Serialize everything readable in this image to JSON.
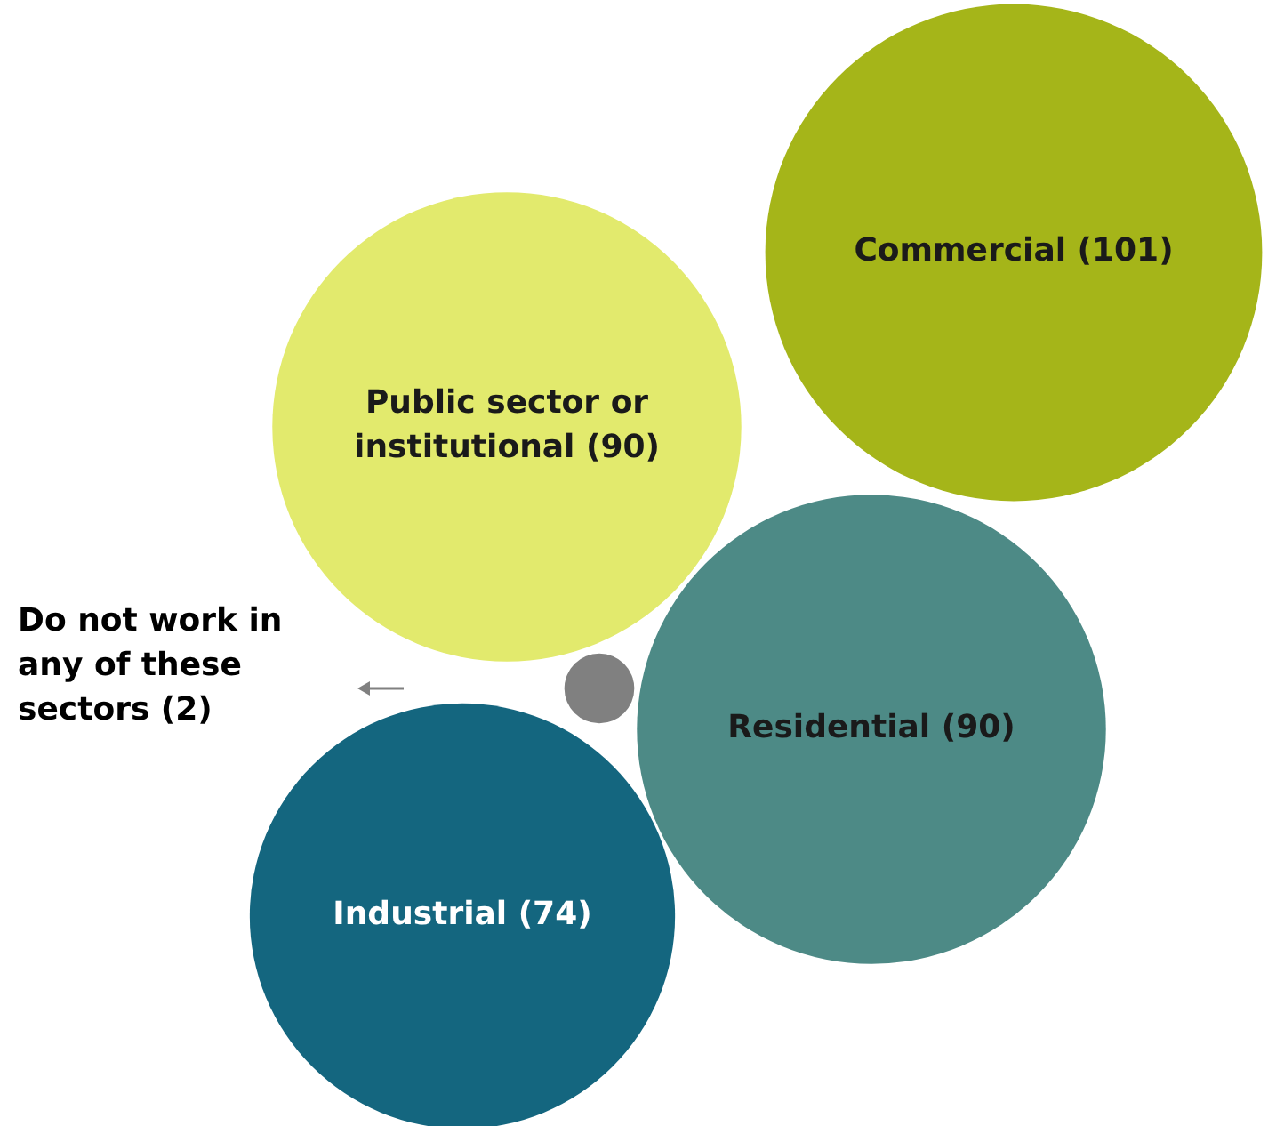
{
  "chart_data": {
    "type": "other",
    "categories": [
      "Commercial",
      "Public sector or institutional",
      "Do not work in any of these sectors",
      "Residential",
      "Industrial"
    ],
    "values": [
      101,
      90,
      2,
      90,
      74
    ],
    "colors": [
      "#a5b519",
      "#e2ea6d",
      "#808080",
      "#4d8a86",
      "#14667f"
    ],
    "value_labels": [
      "(101)",
      "(90)",
      "(2)",
      "(90)",
      "(74)"
    ]
  }
}
